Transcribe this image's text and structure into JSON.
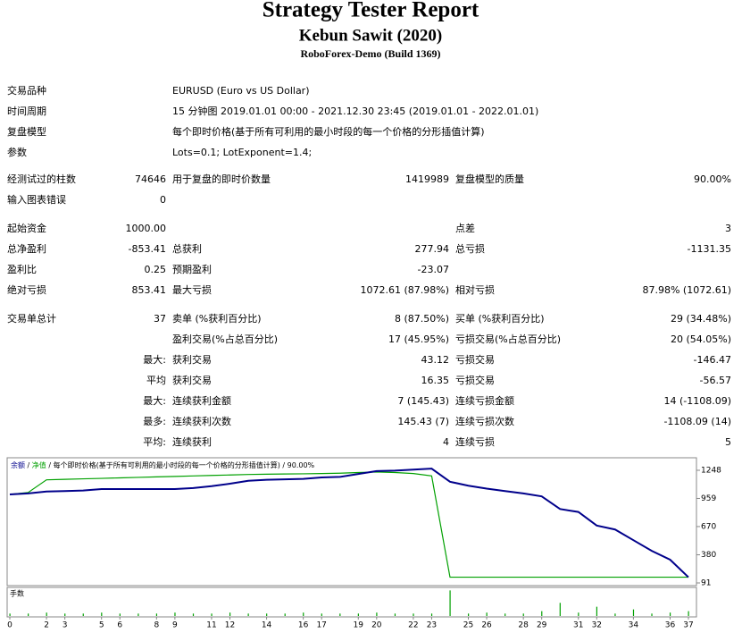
{
  "header": {
    "title": "Strategy Tester Report",
    "subtitle": "Kebun Sawit (2020)",
    "server": "RoboForex-Demo (Build 1369)"
  },
  "info": [
    {
      "label": "交易品种",
      "value": "EURUSD (Euro vs US Dollar)"
    },
    {
      "label": "时间周期",
      "value": "15 分钟图 2019.01.01 00:00 - 2021.12.30 23:45 (2019.01.01 - 2022.01.01)"
    },
    {
      "label": "复盘模型",
      "value": "每个即时价格(基于所有可利用的最小时段的每一个价格的分形插值计算)"
    },
    {
      "label": "参数",
      "value": "Lots=0.1; LotExponent=1.4;"
    }
  ],
  "stats": [
    [
      "经测试过的柱数",
      "74646",
      "用于复盘的即时价数量",
      "1419989",
      "复盘模型的质量",
      "90.00%"
    ],
    [
      "输入图表错误",
      "0",
      null,
      null,
      null,
      null
    ],
    [
      "起始资金",
      "1000.00",
      null,
      null,
      "点差",
      "3"
    ],
    [
      "总净盈利",
      "-853.41",
      "总获利",
      "277.94",
      "总亏损",
      "-1131.35"
    ],
    [
      "盈利比",
      "0.25",
      "预期盈利",
      "-23.07",
      null,
      null
    ],
    [
      "绝对亏损",
      "853.41",
      "最大亏损",
      "1072.61 (87.98%)",
      "相对亏损",
      "87.98% (1072.61)"
    ],
    [
      "交易单总计",
      "37",
      "卖单 (%获利百分比)",
      "8 (87.50%)",
      "买单 (%获利百分比)",
      "29 (34.48%)"
    ],
    [
      null,
      null,
      "盈利交易(%占总百分比)",
      "17 (45.95%)",
      "亏损交易(%占总百分比)",
      "20 (54.05%)"
    ],
    [
      null,
      "最大:",
      "获利交易",
      "43.12",
      "亏损交易",
      "-146.47"
    ],
    [
      null,
      "平均",
      "获利交易",
      "16.35",
      "亏损交易",
      "-56.57"
    ],
    [
      null,
      "最大:",
      "连续获利金额",
      "7 (145.43)",
      "连续亏损金额",
      "14 (-1108.09)"
    ],
    [
      null,
      "最多:",
      "连续获利次数",
      "145.43 (7)",
      "连续亏损次数",
      "-1108.09 (14)"
    ],
    [
      null,
      "平均:",
      "连续获利",
      "4",
      "连续亏损",
      "5"
    ]
  ],
  "chart_data": {
    "type": "line",
    "legend_separator": "/",
    "model": "每个即时价格(基于所有可利用的最小时段的每一个价格的分形插值计算)",
    "quality": "90.00%",
    "x": [
      0,
      1,
      2,
      3,
      4,
      5,
      6,
      7,
      8,
      9,
      10,
      11,
      12,
      13,
      14,
      15,
      16,
      17,
      18,
      19,
      20,
      21,
      22,
      23,
      24,
      25,
      26,
      27,
      28,
      29,
      30,
      31,
      32,
      33,
      34,
      35,
      36,
      37
    ],
    "xlim": [
      0,
      37
    ],
    "xticks": [
      0,
      2,
      3,
      5,
      6,
      8,
      9,
      11,
      12,
      14,
      16,
      17,
      19,
      20,
      22,
      23,
      25,
      26,
      28,
      29,
      31,
      32,
      34,
      36,
      37
    ],
    "ylim": [
      91,
      1248
    ],
    "yticks": [
      1248,
      959,
      670,
      380,
      91
    ],
    "series": [
      {
        "name": "余额",
        "color": "#00008b",
        "values": [
          1000,
          1010,
          1030,
          1035,
          1040,
          1055,
          1055,
          1055,
          1055,
          1055,
          1065,
          1085,
          1110,
          1140,
          1150,
          1155,
          1160,
          1175,
          1180,
          1210,
          1240,
          1245,
          1255,
          1265,
          1130,
          1090,
          1060,
          1035,
          1010,
          980,
          850,
          820,
          680,
          640,
          530,
          420,
          330,
          150
        ]
      },
      {
        "name": "净值",
        "color": "#00a000",
        "values": [
          1000,
          1020,
          1150,
          1155,
          1160,
          1165,
          1170,
          1175,
          1180,
          1185,
          1190,
          1195,
          1200,
          1205,
          1208,
          1210,
          1212,
          1215,
          1218,
          1225,
          1230,
          1225,
          1215,
          1190,
          150,
          150,
          150,
          150,
          150,
          150,
          150,
          150,
          150,
          150,
          150,
          150,
          150,
          150
        ]
      }
    ],
    "volume": {
      "label": "手数",
      "color": "#00a000",
      "ylim": [
        0,
        1.1
      ],
      "values": [
        0.1,
        0.1,
        0.14,
        0.1,
        0.1,
        0.14,
        0.1,
        0.1,
        0.1,
        0.14,
        0.1,
        0.1,
        0.14,
        0.1,
        0.1,
        0.1,
        0.14,
        0.1,
        0.1,
        0.1,
        0.14,
        0.1,
        0.1,
        0.1,
        1.05,
        0.1,
        0.14,
        0.1,
        0.1,
        0.2,
        0.54,
        0.14,
        0.38,
        0.1,
        0.27,
        0.1,
        0.14,
        0.2
      ]
    }
  }
}
